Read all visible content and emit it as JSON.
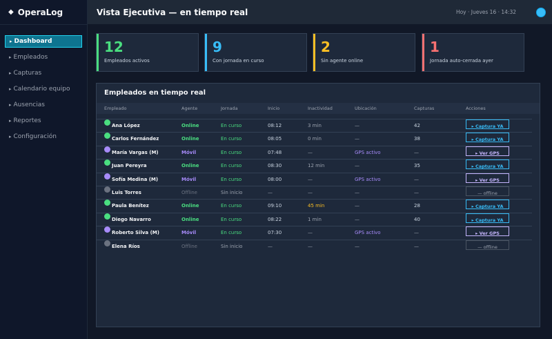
{
  "brand": {
    "icon": "diamond-icon",
    "glyph": "◆",
    "name": "OperaLog"
  },
  "nav": [
    {
      "label": "Dashboard",
      "active": true
    },
    {
      "label": "Empleados",
      "active": false
    },
    {
      "label": "Capturas",
      "active": false
    },
    {
      "label": "Calendario equipo",
      "active": false
    },
    {
      "label": "Ausencias",
      "active": false
    },
    {
      "label": "Reportes",
      "active": false
    },
    {
      "label": "Configuración",
      "active": false
    }
  ],
  "nav_arrow": "▸",
  "header": {
    "title": "Vista Ejecutiva — en tiempo real",
    "date": "Hoy · Jueves 16 · 14:32"
  },
  "stats": [
    {
      "value": "12",
      "label": "Empleados activos",
      "color": "#4ade80"
    },
    {
      "value": "9",
      "label": "Con jornada en curso",
      "color": "#38bdf8"
    },
    {
      "value": "2",
      "label": "Sin agente online",
      "color": "#fbbf24"
    },
    {
      "value": "1",
      "label": "Jornada auto-cerrada ayer",
      "color": "#f87171"
    }
  ],
  "table": {
    "title": "Empleados en tiempo real",
    "columns": [
      "Empleado",
      "Agente",
      "Jornada",
      "Inicio",
      "Inactividad",
      "Ubicación",
      "Capturas",
      "Acciones"
    ],
    "rows": [
      {
        "name": "Ana López",
        "agent": "Online",
        "shift": "En curso",
        "start": "08:12",
        "idle": "3 min",
        "location": "—",
        "captures": "42",
        "action": "▸ Captura YA",
        "kind": "online"
      },
      {
        "name": "Carlos Fernández",
        "agent": "Online",
        "shift": "En curso",
        "start": "08:05",
        "idle": "0 min",
        "location": "—",
        "captures": "38",
        "action": "▸ Captura YA",
        "kind": "online"
      },
      {
        "name": "María Vargas (M)",
        "agent": "Móvil",
        "shift": "En curso",
        "start": "07:48",
        "idle": "—",
        "location": "GPS activo",
        "captures": "—",
        "action": "▸ Ver GPS",
        "kind": "mobile"
      },
      {
        "name": "Juan Pereyra",
        "agent": "Online",
        "shift": "En curso",
        "start": "08:30",
        "idle": "12 min",
        "location": "—",
        "captures": "35",
        "action": "▸ Captura YA",
        "kind": "online"
      },
      {
        "name": "Sofía Medina (M)",
        "agent": "Móvil",
        "shift": "En curso",
        "start": "08:00",
        "idle": "—",
        "location": "GPS activo",
        "captures": "—",
        "action": "▸ Ver GPS",
        "kind": "mobile"
      },
      {
        "name": "Luis Torres",
        "agent": "Offline",
        "shift": "Sin inicio",
        "start": "—",
        "idle": "—",
        "location": "—",
        "captures": "—",
        "action": "— offline",
        "kind": "offline"
      },
      {
        "name": "Paula Benítez",
        "agent": "Online",
        "shift": "En curso",
        "start": "09:10",
        "idle": "45 min",
        "location": "—",
        "captures": "28",
        "action": "▸ Captura YA",
        "kind": "online",
        "idle_warn": true
      },
      {
        "name": "Diego Navarro",
        "agent": "Online",
        "shift": "En curso",
        "start": "08:22",
        "idle": "1 min",
        "location": "—",
        "captures": "40",
        "action": "▸ Captura YA",
        "kind": "online"
      },
      {
        "name": "Roberto Silva (M)",
        "agent": "Móvil",
        "shift": "En curso",
        "start": "07:30",
        "idle": "—",
        "location": "GPS activo",
        "captures": "—",
        "action": "▸ Ver GPS",
        "kind": "mobile"
      },
      {
        "name": "Elena Ríos",
        "agent": "Offline",
        "shift": "Sin inicio",
        "start": "—",
        "idle": "—",
        "location": "—",
        "captures": "—",
        "action": "— offline",
        "kind": "offline"
      }
    ]
  },
  "colors": {
    "online": "#4ade80",
    "mobile": "#a78bfa",
    "offline": "#6b7280",
    "shift_active": "#4ade80",
    "idle_warn": "#fbbf24",
    "gps": "#a78bfa",
    "action_online": "#38bdf8",
    "action_mobile": "#c4b5fd",
    "action_offline": "#9ca3af"
  }
}
